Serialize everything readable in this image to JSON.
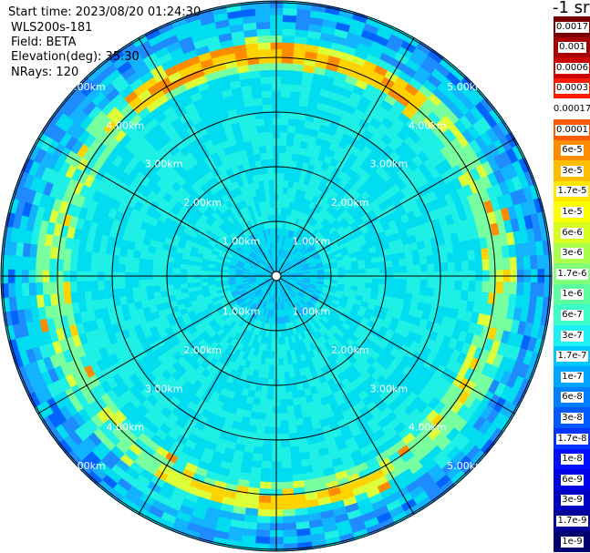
{
  "header": {
    "start_time": "Start time: 2023/08/20 01:24:30",
    "instrument": "WLS200s-181",
    "field": "Field: BETA",
    "elevation": "Elevation(deg): 35.30",
    "nrays": "NRays: 120"
  },
  "colorbar": {
    "unit": "-1 sr",
    "labels": [
      "0.0017",
      "0.001",
      "0.0006",
      "0.0003",
      "0.00017",
      "0.0001",
      "6e-5",
      "3e-5",
      "1.7e-5",
      "1e-5",
      "6e-6",
      "3e-6",
      "1.7e-6",
      "1e-6",
      "6e-7",
      "3e-7",
      "1.7e-7",
      "1e-7",
      "6e-8",
      "3e-8",
      "1.7e-8",
      "1e-8",
      "6e-9",
      "3e-9",
      "1.7e-9",
      "1e-9"
    ],
    "colors": [
      "#7a0000",
      "#a80000",
      "#cc0000",
      "#ff1a00",
      "#ffffff",
      "#ff5a00",
      "#ff8c00",
      "#ffbd00",
      "#ffe600",
      "#fbff00",
      "#d6ff21",
      "#aaff4d",
      "#80ff78",
      "#5cffa0",
      "#3cffc8",
      "#1ef0f5",
      "#00c8ff",
      "#00a5ff",
      "#0080ff",
      "#005aff",
      "#0034ff",
      "#0010ff",
      "#0000e6",
      "#0000c0",
      "#000098",
      "#000070"
    ]
  },
  "chart_data": {
    "type": "heatmap",
    "projection": "polar-ppi",
    "field": "BETA",
    "nrays": 120,
    "elevation_deg": 35.3,
    "range_rings_km": [
      1.0,
      2.0,
      3.0,
      4.0,
      5.0
    ],
    "ring_labels": [
      "1.00km",
      "2.00km",
      "3.00km",
      "4.00km",
      "5.00km"
    ],
    "azimuth_spokes_deg": [
      0,
      30,
      60,
      90,
      120,
      150,
      180,
      210,
      240,
      270,
      300,
      330
    ]
  }
}
